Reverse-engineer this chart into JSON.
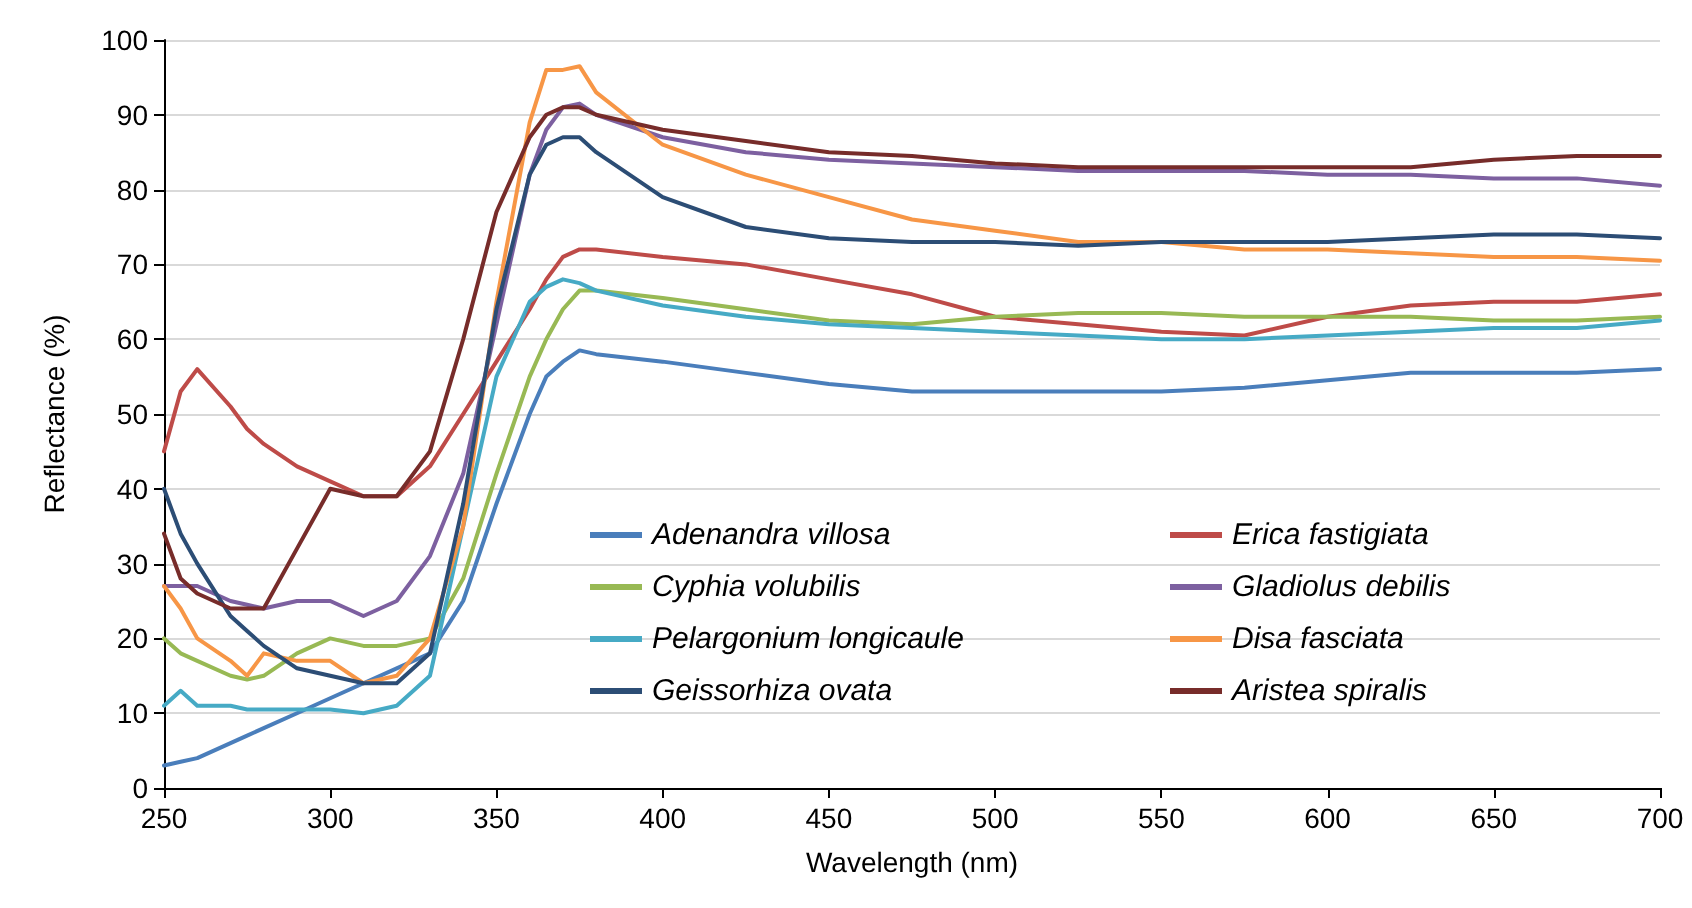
{
  "chart_data": {
    "type": "line",
    "xlabel": "Wavelength (nm)",
    "ylabel": "Reflectance (%)",
    "x": [
      250,
      255,
      260,
      270,
      275,
      280,
      290,
      300,
      310,
      320,
      330,
      340,
      350,
      360,
      365,
      370,
      375,
      380,
      400,
      425,
      450,
      475,
      500,
      525,
      550,
      575,
      600,
      625,
      650,
      675,
      700
    ],
    "series": [
      {
        "name": "Adenandra villosa",
        "color": "#4a7ebb",
        "values": [
          3,
          3.5,
          4,
          6,
          7,
          8,
          10,
          12,
          14,
          16,
          18,
          25,
          38,
          50,
          55,
          57,
          58.5,
          58,
          57,
          55.5,
          54,
          53,
          53,
          53,
          53,
          53.5,
          54.5,
          55.5,
          55.5,
          55.5,
          56
        ]
      },
      {
        "name": "Erica fastigiata",
        "color": "#be4b48",
        "values": [
          45,
          53,
          56,
          51,
          48,
          46,
          43,
          41,
          39,
          39,
          43,
          50,
          57,
          64,
          68,
          71,
          72,
          72,
          71,
          70,
          68,
          66,
          63,
          62,
          61,
          60.5,
          63,
          64.5,
          65,
          65,
          66
        ]
      },
      {
        "name": "Cyphia volubilis",
        "color": "#98b954",
        "values": [
          20,
          18,
          17,
          15,
          14.5,
          15,
          18,
          20,
          19,
          19,
          20,
          28,
          42,
          55,
          60,
          64,
          66.5,
          66.5,
          65.5,
          64,
          62.5,
          62,
          63,
          63.5,
          63.5,
          63,
          63,
          63,
          62.5,
          62.5,
          63
        ]
      },
      {
        "name": "Gladiolus debilis",
        "color": "#7d60a0",
        "values": [
          27,
          27,
          27,
          25,
          24.5,
          24,
          25,
          25,
          23,
          25,
          31,
          42,
          62,
          82,
          88,
          91,
          91.5,
          90,
          87,
          85,
          84,
          83.5,
          83,
          82.5,
          82.5,
          82.5,
          82,
          82,
          81.5,
          81.5,
          80.5
        ]
      },
      {
        "name": "Pelargonium longicaule",
        "color": "#46aac5",
        "values": [
          11,
          13,
          11,
          11,
          10.5,
          10.5,
          10.5,
          10.5,
          10,
          11,
          15,
          35,
          55,
          65,
          67,
          68,
          67.5,
          66.5,
          64.5,
          63,
          62,
          61.5,
          61,
          60.5,
          60,
          60,
          60.5,
          61,
          61.5,
          61.5,
          62.5
        ]
      },
      {
        "name": "Disa fasciata",
        "color": "#f79646",
        "values": [
          27,
          24,
          20,
          17,
          15,
          18,
          17,
          17,
          14,
          15,
          20,
          35,
          65,
          89,
          96,
          96,
          96.5,
          93,
          86,
          82,
          79,
          76,
          74.5,
          73,
          73,
          72,
          72,
          71.5,
          71,
          71,
          70.5
        ]
      },
      {
        "name": "Geissorhiza ovata",
        "color": "#2c4d75",
        "values": [
          40,
          34,
          30,
          23,
          21,
          19,
          16,
          15,
          14,
          14,
          18,
          38,
          64,
          82,
          86,
          87,
          87,
          85,
          79,
          75,
          73.5,
          73,
          73,
          72.5,
          73,
          73,
          73,
          73.5,
          74,
          74,
          73.5
        ]
      },
      {
        "name": "Aristea spiralis",
        "color": "#772c2a",
        "values": [
          34,
          28,
          26,
          24,
          24,
          24,
          32,
          40,
          39,
          39,
          45,
          60,
          77,
          87,
          90,
          91,
          91,
          90,
          88,
          86.5,
          85,
          84.5,
          83.5,
          83,
          83,
          83,
          83,
          83,
          84,
          84.5,
          84.5
        ]
      }
    ],
    "xlim": [
      250,
      700
    ],
    "xticks": [
      250,
      300,
      350,
      400,
      450,
      500,
      550,
      600,
      650,
      700
    ],
    "ylim": [
      0,
      100
    ],
    "yticks": [
      0,
      10,
      20,
      30,
      40,
      50,
      60,
      70,
      80,
      90,
      100
    ],
    "grid": "y",
    "legend": "bottom",
    "marker": "none",
    "line_style": "solid"
  }
}
